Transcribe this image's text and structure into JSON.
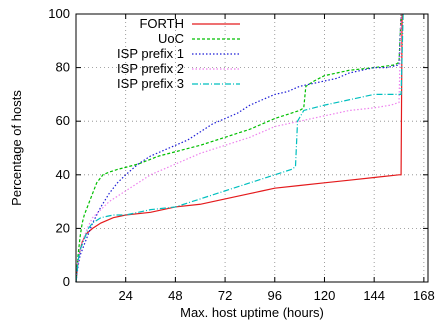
{
  "chart_data": {
    "type": "line",
    "title": "",
    "xlabel": "Max. host uptime (hours)",
    "ylabel": "Percentage of hosts",
    "xlim": [
      0,
      170
    ],
    "ylim": [
      0,
      100
    ],
    "xticks": [
      24,
      48,
      72,
      96,
      120,
      144,
      168
    ],
    "yticks": [
      0,
      20,
      40,
      60,
      80,
      100
    ],
    "grid": true,
    "legend_position": "top-left",
    "series": [
      {
        "name": "FORTH",
        "color": "#e41a1c",
        "dash": "solid",
        "points": [
          [
            0,
            0
          ],
          [
            1,
            8
          ],
          [
            2,
            12
          ],
          [
            3,
            15
          ],
          [
            5,
            18
          ],
          [
            8,
            20
          ],
          [
            12,
            22
          ],
          [
            18,
            24
          ],
          [
            24,
            25
          ],
          [
            36,
            26
          ],
          [
            48,
            28
          ],
          [
            60,
            29
          ],
          [
            72,
            31
          ],
          [
            84,
            33
          ],
          [
            90,
            34
          ],
          [
            96,
            35
          ],
          [
            108,
            36
          ],
          [
            120,
            37
          ],
          [
            132,
            38
          ],
          [
            144,
            39
          ],
          [
            156,
            40
          ],
          [
            157,
            40
          ],
          [
            157.5,
            100
          ]
        ]
      },
      {
        "name": "UoC",
        "color": "#00bf00",
        "dash": "3,2",
        "points": [
          [
            0,
            0
          ],
          [
            1,
            10
          ],
          [
            2,
            17
          ],
          [
            3,
            22
          ],
          [
            4,
            25
          ],
          [
            6,
            29
          ],
          [
            8,
            33
          ],
          [
            10,
            37
          ],
          [
            13,
            40
          ],
          [
            16,
            41
          ],
          [
            20,
            42
          ],
          [
            30,
            44
          ],
          [
            40,
            47
          ],
          [
            50,
            49
          ],
          [
            60,
            51
          ],
          [
            72,
            54
          ],
          [
            84,
            57
          ],
          [
            96,
            61
          ],
          [
            108,
            64
          ],
          [
            110,
            65
          ],
          [
            111,
            73
          ],
          [
            115,
            75
          ],
          [
            120,
            77
          ],
          [
            132,
            79
          ],
          [
            144,
            80
          ],
          [
            154,
            81
          ],
          [
            156,
            82
          ],
          [
            157,
            100
          ]
        ]
      },
      {
        "name": "ISP prefix 1",
        "color": "#1c1cd6",
        "dash": "1.5,2",
        "points": [
          [
            0,
            0
          ],
          [
            1,
            6
          ],
          [
            2,
            10
          ],
          [
            4,
            14
          ],
          [
            6,
            18
          ],
          [
            8,
            22
          ],
          [
            12,
            28
          ],
          [
            16,
            33
          ],
          [
            20,
            37
          ],
          [
            24,
            40
          ],
          [
            30,
            44
          ],
          [
            36,
            47
          ],
          [
            42,
            49
          ],
          [
            48,
            51
          ],
          [
            54,
            53
          ],
          [
            60,
            56
          ],
          [
            66,
            59
          ],
          [
            72,
            61
          ],
          [
            78,
            63
          ],
          [
            84,
            66
          ],
          [
            90,
            68
          ],
          [
            96,
            70
          ],
          [
            102,
            71
          ],
          [
            108,
            73
          ],
          [
            114,
            74
          ],
          [
            120,
            75
          ],
          [
            126,
            76
          ],
          [
            132,
            78
          ],
          [
            138,
            79
          ],
          [
            144,
            80
          ],
          [
            150,
            80
          ],
          [
            156,
            81
          ],
          [
            157,
            100
          ]
        ]
      },
      {
        "name": "ISP prefix 2",
        "color": "#ee82ee",
        "dash": "1.5,2",
        "points": [
          [
            0,
            0
          ],
          [
            1,
            8
          ],
          [
            2,
            12
          ],
          [
            4,
            17
          ],
          [
            6,
            21
          ],
          [
            8,
            24
          ],
          [
            12,
            27
          ],
          [
            16,
            30
          ],
          [
            20,
            32
          ],
          [
            24,
            34
          ],
          [
            36,
            40
          ],
          [
            48,
            44
          ],
          [
            60,
            48
          ],
          [
            72,
            51
          ],
          [
            84,
            54
          ],
          [
            96,
            58
          ],
          [
            108,
            60
          ],
          [
            120,
            62
          ],
          [
            132,
            64
          ],
          [
            144,
            65
          ],
          [
            152,
            66
          ],
          [
            156,
            67
          ],
          [
            157,
            100
          ]
        ]
      },
      {
        "name": "ISP prefix 3",
        "color": "#00bfbf",
        "dash": "6,2,1,2",
        "points": [
          [
            0,
            0
          ],
          [
            1,
            8
          ],
          [
            2,
            12
          ],
          [
            4,
            16
          ],
          [
            6,
            20
          ],
          [
            8,
            22
          ],
          [
            12,
            24
          ],
          [
            18,
            25
          ],
          [
            24,
            25
          ],
          [
            36,
            27
          ],
          [
            48,
            28
          ],
          [
            60,
            31
          ],
          [
            72,
            34
          ],
          [
            84,
            37
          ],
          [
            96,
            40
          ],
          [
            104,
            42
          ],
          [
            106,
            43
          ],
          [
            107,
            60
          ],
          [
            110,
            64
          ],
          [
            120,
            66
          ],
          [
            132,
            68
          ],
          [
            144,
            70
          ],
          [
            154,
            70
          ],
          [
            157,
            70
          ],
          [
            158,
            100
          ]
        ]
      }
    ]
  }
}
